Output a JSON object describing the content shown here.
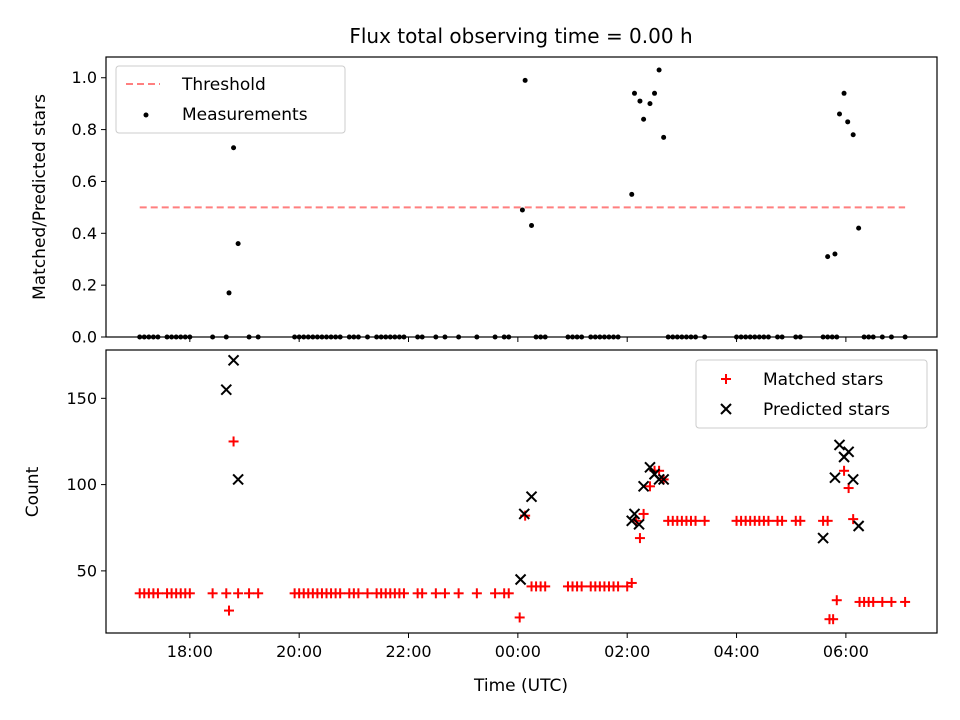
{
  "title": "Flux total observing time = 0.00 h",
  "xlabel": "Time (UTC)",
  "colors": {
    "threshold": "#ff7f7f",
    "measurements": "#000000",
    "matched": "#ff0000",
    "predicted": "#000000"
  },
  "chart_data": [
    {
      "type": "scatter",
      "ylabel": "Matched/Predicted stars",
      "ylim": [
        0,
        1.08
      ],
      "yticks": [
        "0.0",
        "0.2",
        "0.4",
        "0.6",
        "0.8",
        "1.0"
      ],
      "legend": {
        "placement": "top-left",
        "entries": [
          "Threshold",
          "Measurements"
        ]
      },
      "threshold": {
        "name": "Threshold",
        "value": 0.5,
        "x_range": [
          "17:05",
          "23:59",
          "07:05"
        ]
      },
      "series": [
        {
          "name": "Measurements",
          "points": [
            [
              "17:05",
              0
            ],
            [
              "17:10",
              0
            ],
            [
              "17:15",
              0
            ],
            [
              "17:20",
              0
            ],
            [
              "17:25",
              0
            ],
            [
              "17:35",
              0
            ],
            [
              "17:40",
              0
            ],
            [
              "17:45",
              0
            ],
            [
              "17:50",
              0
            ],
            [
              "17:55",
              0
            ],
            [
              "18:00",
              0
            ],
            [
              "18:25",
              0
            ],
            [
              "18:40",
              0
            ],
            [
              "18:43",
              0.17
            ],
            [
              "18:48",
              0.73
            ],
            [
              "18:53",
              0.36
            ],
            [
              "19:05",
              0
            ],
            [
              "19:15",
              0
            ],
            [
              "19:55",
              0
            ],
            [
              "20:00",
              0
            ],
            [
              "20:05",
              0
            ],
            [
              "20:10",
              0
            ],
            [
              "20:15",
              0
            ],
            [
              "20:20",
              0
            ],
            [
              "20:25",
              0
            ],
            [
              "20:30",
              0
            ],
            [
              "20:35",
              0
            ],
            [
              "20:40",
              0
            ],
            [
              "20:45",
              0
            ],
            [
              "20:55",
              0
            ],
            [
              "21:00",
              0
            ],
            [
              "21:05",
              0
            ],
            [
              "21:15",
              0
            ],
            [
              "21:25",
              0
            ],
            [
              "21:30",
              0
            ],
            [
              "21:35",
              0
            ],
            [
              "21:40",
              0
            ],
            [
              "21:45",
              0
            ],
            [
              "21:50",
              0
            ],
            [
              "21:55",
              0
            ],
            [
              "22:10",
              0
            ],
            [
              "22:15",
              0
            ],
            [
              "22:30",
              0
            ],
            [
              "22:40",
              0
            ],
            [
              "22:55",
              0
            ],
            [
              "23:15",
              0
            ],
            [
              "23:35",
              0
            ],
            [
              "23:45",
              0
            ],
            [
              "23:50",
              0
            ],
            [
              "00:05",
              0.49
            ],
            [
              "00:08",
              0.99
            ],
            [
              "00:15",
              0.43
            ],
            [
              "00:20",
              0
            ],
            [
              "00:25",
              0
            ],
            [
              "00:30",
              0
            ],
            [
              "00:55",
              0
            ],
            [
              "01:00",
              0
            ],
            [
              "01:05",
              0
            ],
            [
              "01:10",
              0
            ],
            [
              "01:20",
              0
            ],
            [
              "01:25",
              0
            ],
            [
              "01:30",
              0
            ],
            [
              "01:35",
              0
            ],
            [
              "01:40",
              0
            ],
            [
              "01:45",
              0
            ],
            [
              "01:50",
              0
            ],
            [
              "02:05",
              0.55
            ],
            [
              "02:08",
              0.94
            ],
            [
              "02:14",
              0.91
            ],
            [
              "02:18",
              0.84
            ],
            [
              "02:25",
              0.9
            ],
            [
              "02:30",
              0.94
            ],
            [
              "02:35",
              1.03
            ],
            [
              "02:40",
              0.77
            ],
            [
              "02:45",
              0
            ],
            [
              "02:50",
              0
            ],
            [
              "02:55",
              0
            ],
            [
              "03:00",
              0
            ],
            [
              "03:05",
              0
            ],
            [
              "03:10",
              0
            ],
            [
              "03:15",
              0
            ],
            [
              "03:25",
              0
            ],
            [
              "04:00",
              0
            ],
            [
              "04:05",
              0
            ],
            [
              "04:10",
              0
            ],
            [
              "04:15",
              0
            ],
            [
              "04:20",
              0
            ],
            [
              "04:25",
              0
            ],
            [
              "04:30",
              0
            ],
            [
              "04:35",
              0
            ],
            [
              "04:45",
              0
            ],
            [
              "04:50",
              0
            ],
            [
              "05:05",
              0
            ],
            [
              "05:10",
              0
            ],
            [
              "05:35",
              0
            ],
            [
              "05:40",
              0
            ],
            [
              "05:45",
              0
            ],
            [
              "05:50",
              0
            ],
            [
              "05:40",
              0.31
            ],
            [
              "05:48",
              0.32
            ],
            [
              "05:53",
              0.86
            ],
            [
              "05:58",
              0.94
            ],
            [
              "06:02",
              0.83
            ],
            [
              "06:08",
              0.78
            ],
            [
              "06:14",
              0.42
            ],
            [
              "06:20",
              0
            ],
            [
              "06:25",
              0
            ],
            [
              "06:30",
              0
            ],
            [
              "06:40",
              0
            ],
            [
              "06:50",
              0
            ],
            [
              "07:05",
              0
            ]
          ]
        }
      ]
    },
    {
      "type": "scatter",
      "ylabel": "Count",
      "ylim": [
        14,
        178
      ],
      "yticks": [
        "50",
        "100",
        "150"
      ],
      "legend": {
        "placement": "top-right",
        "entries": [
          "Matched stars",
          "Predicted stars"
        ]
      },
      "series": [
        {
          "name": "Matched stars",
          "points": [
            [
              "17:05",
              37
            ],
            [
              "17:10",
              37
            ],
            [
              "17:15",
              37
            ],
            [
              "17:20",
              37
            ],
            [
              "17:25",
              37
            ],
            [
              "17:35",
              37
            ],
            [
              "17:40",
              37
            ],
            [
              "17:45",
              37
            ],
            [
              "17:50",
              37
            ],
            [
              "17:55",
              37
            ],
            [
              "18:00",
              37
            ],
            [
              "18:25",
              37
            ],
            [
              "18:40",
              37
            ],
            [
              "18:43",
              27
            ],
            [
              "18:48",
              125
            ],
            [
              "18:53",
              37
            ],
            [
              "19:05",
              37
            ],
            [
              "19:15",
              37
            ],
            [
              "19:55",
              37
            ],
            [
              "20:00",
              37
            ],
            [
              "20:05",
              37
            ],
            [
              "20:10",
              37
            ],
            [
              "20:15",
              37
            ],
            [
              "20:20",
              37
            ],
            [
              "20:25",
              37
            ],
            [
              "20:30",
              37
            ],
            [
              "20:35",
              37
            ],
            [
              "20:40",
              37
            ],
            [
              "20:45",
              37
            ],
            [
              "20:55",
              37
            ],
            [
              "21:00",
              37
            ],
            [
              "21:05",
              37
            ],
            [
              "21:15",
              37
            ],
            [
              "21:25",
              37
            ],
            [
              "21:30",
              37
            ],
            [
              "21:35",
              37
            ],
            [
              "21:40",
              37
            ],
            [
              "21:45",
              37
            ],
            [
              "21:50",
              37
            ],
            [
              "21:55",
              37
            ],
            [
              "22:10",
              37
            ],
            [
              "22:15",
              37
            ],
            [
              "22:30",
              37
            ],
            [
              "22:40",
              37
            ],
            [
              "22:55",
              37
            ],
            [
              "23:15",
              37
            ],
            [
              "23:35",
              37
            ],
            [
              "23:45",
              37
            ],
            [
              "23:50",
              37
            ],
            [
              "00:02",
              23
            ],
            [
              "00:08",
              82
            ],
            [
              "00:15",
              41
            ],
            [
              "00:20",
              41
            ],
            [
              "00:25",
              41
            ],
            [
              "00:30",
              41
            ],
            [
              "00:55",
              41
            ],
            [
              "01:00",
              41
            ],
            [
              "01:05",
              41
            ],
            [
              "01:10",
              41
            ],
            [
              "01:20",
              41
            ],
            [
              "01:25",
              41
            ],
            [
              "01:30",
              41
            ],
            [
              "01:35",
              41
            ],
            [
              "01:40",
              41
            ],
            [
              "01:45",
              41
            ],
            [
              "01:50",
              41
            ],
            [
              "02:00",
              41
            ],
            [
              "02:05",
              43
            ],
            [
              "02:10",
              79
            ],
            [
              "02:14",
              69
            ],
            [
              "02:18",
              83
            ],
            [
              "02:25",
              99
            ],
            [
              "02:30",
              108
            ],
            [
              "02:35",
              108
            ],
            [
              "02:40",
              103
            ],
            [
              "02:45",
              79
            ],
            [
              "02:50",
              79
            ],
            [
              "02:55",
              79
            ],
            [
              "03:00",
              79
            ],
            [
              "03:05",
              79
            ],
            [
              "03:10",
              79
            ],
            [
              "03:15",
              79
            ],
            [
              "03:25",
              79
            ],
            [
              "04:00",
              79
            ],
            [
              "04:05",
              79
            ],
            [
              "04:10",
              79
            ],
            [
              "04:15",
              79
            ],
            [
              "04:20",
              79
            ],
            [
              "04:25",
              79
            ],
            [
              "04:30",
              79
            ],
            [
              "04:35",
              79
            ],
            [
              "04:45",
              79
            ],
            [
              "04:50",
              79
            ],
            [
              "05:05",
              79
            ],
            [
              "05:10",
              79
            ],
            [
              "05:35",
              79
            ],
            [
              "05:40",
              79
            ],
            [
              "05:42",
              22
            ],
            [
              "05:46",
              22
            ],
            [
              "05:50",
              33
            ],
            [
              "05:58",
              108
            ],
            [
              "06:03",
              98
            ],
            [
              "06:08",
              80
            ],
            [
              "06:15",
              32
            ],
            [
              "06:20",
              32
            ],
            [
              "06:25",
              32
            ],
            [
              "06:30",
              32
            ],
            [
              "06:40",
              32
            ],
            [
              "06:50",
              32
            ],
            [
              "07:05",
              32
            ]
          ]
        },
        {
          "name": "Predicted stars",
          "points": [
            [
              "18:40",
              155
            ],
            [
              "18:48",
              172
            ],
            [
              "18:53",
              103
            ],
            [
              "00:03",
              45
            ],
            [
              "00:07",
              83
            ],
            [
              "00:15",
              93
            ],
            [
              "02:05",
              79
            ],
            [
              "02:08",
              83
            ],
            [
              "02:13",
              77
            ],
            [
              "02:18",
              99
            ],
            [
              "02:25",
              110
            ],
            [
              "02:30",
              106
            ],
            [
              "02:35",
              103
            ],
            [
              "02:40",
              103
            ],
            [
              "05:35",
              69
            ],
            [
              "05:48",
              104
            ],
            [
              "05:53",
              123
            ],
            [
              "05:58",
              116
            ],
            [
              "06:03",
              119
            ],
            [
              "06:08",
              103
            ],
            [
              "06:14",
              76
            ]
          ]
        }
      ]
    }
  ],
  "xaxis": {
    "range": [
      "16:28",
      "17:00",
      "07:40",
      "07:40"
    ],
    "ticks": [
      "18:00",
      "20:00",
      "22:00",
      "00:00",
      "02:00",
      "04:00",
      "06:00"
    ]
  }
}
